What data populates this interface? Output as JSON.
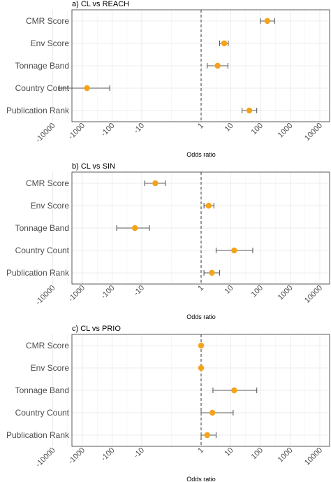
{
  "chart_data": [
    {
      "type": "forest",
      "title": "a) CL vs REACH",
      "xlabel": "Odds ratio",
      "ylabel": "",
      "xscale": "symmetric-log",
      "xlim": [
        -30000,
        30000
      ],
      "xticks": [
        -10000,
        -1000,
        -100,
        -10,
        1,
        10,
        100,
        1000,
        10000
      ],
      "xtick_labels": [
        "-10000",
        "-1000",
        "-100",
        "-10",
        "1",
        "10",
        "100",
        "1000",
        "10000"
      ],
      "reference_line": 1,
      "grid": true,
      "point_color": "#f5a31a",
      "categories": [
        "CMR Score",
        "Env Score",
        "Tonnage Band",
        "Country Count",
        "Publication Rank"
      ],
      "estimate": [
        170,
        6,
        3.6,
        -700,
        42
      ],
      "lower": [
        100,
        4.2,
        1.6,
        -6000,
        24
      ],
      "upper": [
        300,
        8.2,
        8,
        -120,
        75
      ]
    },
    {
      "type": "forest",
      "title": "b) CL vs SIN",
      "xlabel": "Odds ratio",
      "ylabel": "",
      "xscale": "symmetric-log",
      "xlim": [
        -30000,
        30000
      ],
      "xticks": [
        -10000,
        -1000,
        -100,
        -10,
        1,
        10,
        100,
        1000,
        10000
      ],
      "xtick_labels": [
        "-10000",
        "-1000",
        "-100",
        "-10",
        "1",
        "10",
        "100",
        "1000",
        "10000"
      ],
      "reference_line": 1,
      "grid": true,
      "point_color": "#f5a31a",
      "categories": [
        "CMR Score",
        "Env Score",
        "Tonnage Band",
        "Country Count",
        "Publication Rank"
      ],
      "estimate": [
        -3.5,
        1.8,
        -17,
        13,
        2.3
      ],
      "lower": [
        -8,
        1.25,
        -70,
        3.2,
        1.25
      ],
      "upper": [
        -1.6,
        2.7,
        -5.5,
        55,
        4.2
      ]
    },
    {
      "type": "forest",
      "title": "c) CL vs PRIO",
      "xlabel": "Odds ratio",
      "ylabel": "",
      "xscale": "symmetric-log",
      "xlim": [
        -30000,
        30000
      ],
      "xticks": [
        -10000,
        -1000,
        -100,
        -10,
        1,
        10,
        100,
        1000,
        10000
      ],
      "xtick_labels": [
        "-10000",
        "-1000",
        "-100",
        "-10",
        "1",
        "10",
        "100",
        "1000",
        "10000"
      ],
      "reference_line": 1,
      "grid": true,
      "point_color": "#f5a31a",
      "categories": [
        "CMR Score",
        "Env Score",
        "Tonnage Band",
        "Country Count",
        "Publication Rank"
      ],
      "estimate": [
        0.55,
        0.6,
        13,
        2.4,
        1.6
      ],
      "lower": [
        0.25,
        0.35,
        2.5,
        0.3,
        0.95
      ],
      "upper": [
        1.05,
        0.8,
        75,
        12,
        3.2
      ]
    }
  ]
}
